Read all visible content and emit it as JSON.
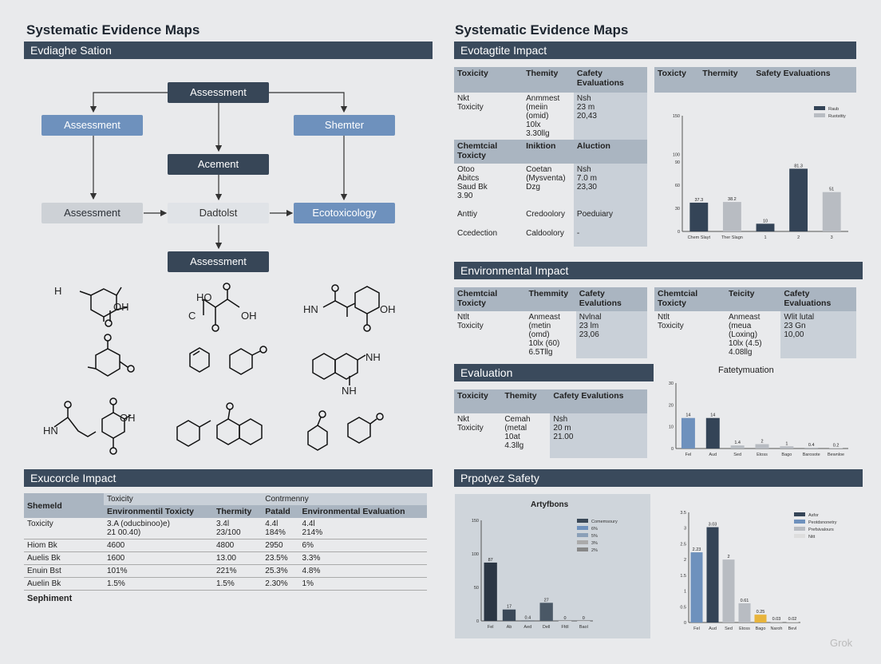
{
  "left": {
    "title": "Systematic Evidence Maps",
    "flow_header": "Evdiaghe Sation",
    "flow": {
      "top": "Assessment",
      "left1": "Assessment",
      "right1": "Shemter",
      "mid": "Acement",
      "left2": "Assessment",
      "center2": "Dadtolst",
      "right2": "Ecotoxicology",
      "bottom": "Assessment"
    },
    "molecule_labels": {
      "m1_h": "H",
      "m1_o": "O",
      "m1_oh": "OH",
      "m2_ho": "HO",
      "m2_c": "C",
      "m2_oh": "OH",
      "m3_hn": "HN",
      "m3_oh": "OH",
      "m5_nh": "NH",
      "m5_nh2": "NH",
      "m6_hn": "HN",
      "m6_n": "N",
      "m6_oh": "OH"
    },
    "table_header": "Exucorcle Impact",
    "table": {
      "row_header": "Shemeld",
      "group1": "Toxicity",
      "group2": "Contrmenny",
      "cols": [
        "Environmentil Toxicty",
        "Thermity",
        "Patald",
        "Environmental Evaluation"
      ],
      "rows": [
        {
          "label": "Toxicity",
          "cells": [
            "3.A (oducbinoo)e)\n21 00.40)",
            "3.4l\n23/100",
            "4.4l\n184%",
            "4.4l\n214%"
          ]
        },
        {
          "label": "Hiom Bk",
          "cells": [
            "4600",
            "4800",
            "2950",
            "6%"
          ]
        },
        {
          "label": "Auelis Bk",
          "cells": [
            "1600",
            "13.00",
            "23.5%",
            "3.3%"
          ]
        },
        {
          "label": "Enuin Bst",
          "cells": [
            "101%",
            "221%",
            "25.3%",
            "4.8%"
          ]
        },
        {
          "label": "Auelin Bk",
          "cells": [
            "1.5%",
            "1.5%",
            "2.30%",
            "1%"
          ]
        }
      ],
      "footer": "Sephiment"
    }
  },
  "right": {
    "title": "Systematic Evidence Maps",
    "impact_header": "Evotagtite Impact",
    "t1": {
      "headers": [
        "Toxicity",
        "Themity",
        "Cafety Evaluations"
      ],
      "r1": [
        "Nkt\nToxicity",
        "Anmmest\n(meiin (omid)\n10lx\n3.30llg",
        "Nsh\n23 m\n20,43"
      ],
      "headers2": [
        "Chemtcial Toxicty",
        "Iniktion",
        "Aluction"
      ],
      "r2": [
        "Otoo\nAbitcs\nSaud Bk\n3.90",
        "Coetan\n(Mysventa)\nDzg",
        "Nsh\n7.0 m\n23,30"
      ],
      "r3": [
        "Anttiy",
        "Credoolory",
        "Poeduiary"
      ],
      "r4": [
        "Ccedection",
        "Caldoolory",
        "-"
      ]
    },
    "t2_headers": [
      "Toxicty",
      "Thermity",
      "Safety Evaluations"
    ],
    "chart1": {
      "legend": [
        "Raub",
        "Ruotsttty"
      ],
      "yticks": [
        "150",
        "100",
        "90",
        "60",
        "30",
        "0"
      ],
      "xticks": [
        "Chem Slayt",
        "Ther Slagn"
      ],
      "x2ticks": [
        "1",
        "2",
        "3"
      ]
    },
    "env_header": "Environmental Impact",
    "t3": {
      "headers": [
        "Chemtcial Toxicty",
        "Themmity",
        "Cafety Evalutions"
      ],
      "r1": [
        "Ntlt\nToxicity",
        "Anmeast\n(metin (omd)\n10lx (60)\n6.5Tllg",
        "Nvlnal\n23 lm\n23,06"
      ]
    },
    "t4": {
      "headers": [
        "Chemtcial Toxicty",
        "Teicity",
        "Cafety Evaluations"
      ],
      "r1": [
        "Ntlt\nToxicity",
        "Anmeast\n(meua (Loxing)\n10lx (4.5)\n4.08llg",
        "Wlit lutal\n23 Gn\n10,00"
      ]
    },
    "eval_header": "Evaluation",
    "t5": {
      "headers": [
        "Toxicity",
        "Themity",
        "Cafety Evalutions"
      ],
      "r1": [
        "Nkt\nToxicity",
        "Cemah\n(metal\n10at\n4.3llg",
        "Nsh\n20 m\n21.00"
      ]
    },
    "chart2_title": "Fatetymuation",
    "safety_header": "Prpotyez Safety",
    "chart3_title": "Artyfbons",
    "chart3_legend": [
      "Comemsoury",
      "6%",
      "5%",
      "3%",
      "2%"
    ],
    "chart4_legend": [
      "Asfor",
      "Peotdsnonetry",
      "Prefsivalours",
      "Nitt"
    ],
    "watermark": "Grok"
  },
  "chart_data": [
    {
      "type": "bar",
      "categories": [
        "Chem Slayt",
        "Ther Slagn",
        "1",
        "2",
        "3"
      ],
      "series": [
        {
          "name": "Raub",
          "values": [
            37.3,
            null,
            10,
            81.3,
            null
          ]
        },
        {
          "name": "Ruotsttty",
          "values": [
            null,
            38.2,
            null,
            null,
            51
          ]
        }
      ],
      "ylim": [
        0,
        150
      ]
    },
    {
      "type": "bar",
      "title": "Fatetymuation",
      "categories": [
        "Fel",
        "Aud",
        "Sed",
        "Etoss",
        "Bago",
        "Barosote",
        "Bewnloe"
      ],
      "values": [
        14,
        14,
        1.4,
        2,
        1,
        0.4,
        0.2
      ],
      "ylim": [
        0,
        30
      ]
    },
    {
      "type": "bar",
      "title": "Artyfbons",
      "categories": [
        "Fel",
        "Ab",
        "Aed",
        "Dell",
        "Ffdl",
        "Baol"
      ],
      "values": [
        87,
        17,
        0.4,
        27,
        0,
        0
      ],
      "ylim": [
        0,
        150
      ]
    },
    {
      "type": "bar",
      "categories": [
        "Fel",
        "Aud",
        "Sed",
        "Etoss",
        "Bago",
        "Naroh",
        "Bevl"
      ],
      "values": [
        2.23,
        3.03,
        2.0,
        0.61,
        0.25,
        0.03,
        0.02
      ],
      "ylim": [
        0,
        3.5
      ]
    }
  ]
}
